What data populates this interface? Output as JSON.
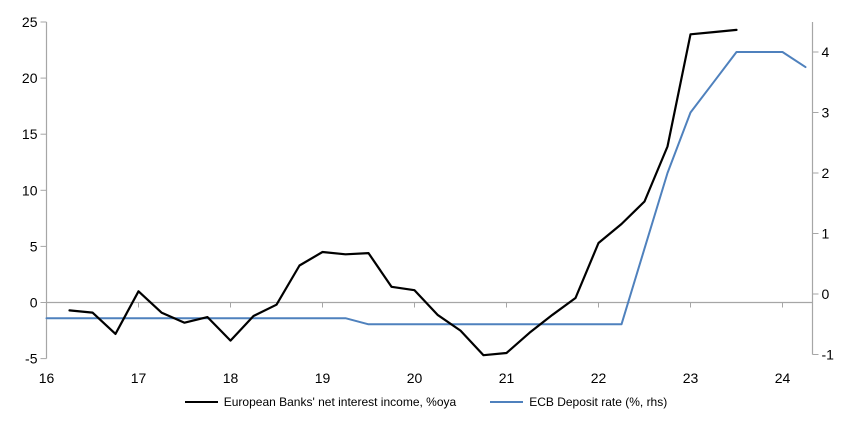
{
  "chart_data": {
    "type": "line",
    "title": "",
    "grid": "zero-line-only",
    "legend_position": "bottom-center",
    "x_axis": {
      "label": "",
      "ticks": [
        16,
        17,
        18,
        19,
        20,
        21,
        22,
        23,
        24
      ],
      "range": [
        16,
        24.32
      ]
    },
    "left_axis": {
      "label": "",
      "ticks": [
        25,
        20,
        15,
        10,
        5,
        0,
        -5
      ],
      "range": [
        -5,
        25
      ]
    },
    "right_axis": {
      "label": "",
      "ticks": [
        4,
        3,
        2,
        1,
        0,
        -1
      ],
      "range": [
        -1,
        4.5
      ]
    },
    "series": [
      {
        "name": "European Banks' net interest income, %oya",
        "axis": "left",
        "color": "#000000",
        "line_width": 2.2,
        "x": [
          16.25,
          16.5,
          16.75,
          17,
          17.25,
          17.5,
          17.75,
          18,
          18.25,
          18.5,
          18.75,
          19,
          19.25,
          19.5,
          19.75,
          20,
          20.25,
          20.5,
          20.75,
          21,
          21.25,
          21.5,
          21.75,
          22,
          22.25,
          22.5,
          22.75,
          23,
          23.25,
          23.5
        ],
        "values": [
          -0.7,
          -0.9,
          -2.8,
          1.0,
          -0.9,
          -1.8,
          -1.3,
          -3.4,
          -1.2,
          -0.2,
          3.3,
          4.5,
          4.3,
          4.4,
          1.4,
          1.1,
          -1.1,
          -2.5,
          -4.7,
          -4.5,
          -2.7,
          -1.1,
          0.4,
          5.3,
          7.0,
          9.0,
          13.9,
          23.9,
          24.1,
          24.3
        ]
      },
      {
        "name": "ECB Deposit rate (%, rhs)",
        "axis": "right",
        "color": "#4F81BD",
        "line_width": 2,
        "x": [
          16,
          16.25,
          16.5,
          16.75,
          17,
          17.25,
          17.5,
          17.75,
          18,
          18.25,
          18.5,
          18.75,
          19,
          19.25,
          19.5,
          19.75,
          20,
          20.25,
          20.5,
          20.75,
          21,
          21.25,
          21.5,
          21.75,
          22,
          22.25,
          22.5,
          22.75,
          23,
          23.25,
          23.5,
          23.75,
          24,
          24.25
        ],
        "values": [
          -0.4,
          -0.4,
          -0.4,
          -0.4,
          -0.4,
          -0.4,
          -0.4,
          -0.4,
          -0.4,
          -0.4,
          -0.4,
          -0.4,
          -0.4,
          -0.4,
          -0.5,
          -0.5,
          -0.5,
          -0.5,
          -0.5,
          -0.5,
          -0.5,
          -0.5,
          -0.5,
          -0.5,
          -0.5,
          -0.5,
          0.75,
          2.0,
          3.0,
          3.5,
          4.0,
          4.0,
          4.0,
          3.75
        ]
      }
    ],
    "colors": {
      "axis_gray": "#A6A6A6",
      "text": "#000000",
      "nii_line": "#000000",
      "ecb_line": "#4F81BD"
    }
  }
}
